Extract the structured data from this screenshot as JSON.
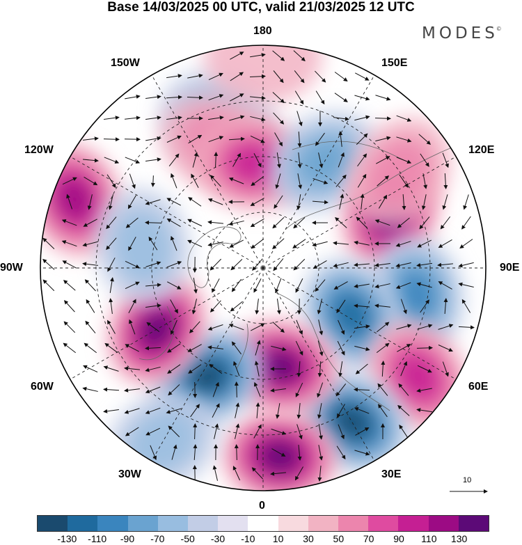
{
  "title": "Base 14/03/2025 00 UTC, valid 21/03/2025 12 UTC",
  "brand": {
    "text": "MODES",
    "mark": "©"
  },
  "longitude_labels": {
    "n180": "180",
    "e150": "150E",
    "e120": "120E",
    "e90": "90E",
    "e60": "60E",
    "e30": "30E",
    "zero": "0",
    "w30": "30W",
    "w60": "60W",
    "w90": "90W",
    "w120": "120W",
    "w150": "150W"
  },
  "reference_vector": {
    "label": "10"
  },
  "colorbar": {
    "colors": [
      "#1a4a6e",
      "#1f6a9e",
      "#3a85be",
      "#6aa3d0",
      "#98bde0",
      "#c2cde6",
      "#e3e0f0",
      "#ffffff",
      "#f8dadf",
      "#f2b3c3",
      "#ec85ad",
      "#df4ba0",
      "#c51f93",
      "#9c0b84",
      "#5c0a77"
    ],
    "tick_labels": [
      "-130",
      "-110",
      "-90",
      "-70",
      "-50",
      "-30",
      "-10",
      "10",
      "30",
      "50",
      "70",
      "90",
      "110",
      "130"
    ]
  },
  "anomaly_centers": [
    {
      "sign": "pos",
      "lon": -110,
      "lat": 0.9,
      "amp": 90
    },
    {
      "sign": "neg",
      "lon": -163,
      "lat": 0.7,
      "amp": 40
    },
    {
      "sign": "pos",
      "lon": 180,
      "lat": 0.95,
      "amp": 20
    },
    {
      "sign": "pos",
      "lon": -160,
      "lat": 0.6,
      "amp": 40
    },
    {
      "sign": "pos",
      "lon": -175,
      "lat": 0.47,
      "amp": 70
    },
    {
      "sign": "neg",
      "lon": 150,
      "lat": 0.55,
      "amp": 60
    },
    {
      "sign": "pos",
      "lon": 113,
      "lat": 0.62,
      "amp": 110
    },
    {
      "sign": "pos",
      "lon": 125,
      "lat": 0.75,
      "amp": 40
    },
    {
      "sign": "neg",
      "lon": 80,
      "lat": 0.7,
      "amp": 70
    },
    {
      "sign": "neg",
      "lon": 62,
      "lat": 0.45,
      "amp": 90
    },
    {
      "sign": "pos",
      "lon": 55,
      "lat": 0.85,
      "amp": 80
    },
    {
      "sign": "neg",
      "lon": 30,
      "lat": 0.8,
      "amp": 120
    },
    {
      "sign": "pos",
      "lon": 5,
      "lat": 0.85,
      "amp": 120
    },
    {
      "sign": "pos",
      "lon": 10,
      "lat": 0.45,
      "amp": 110
    },
    {
      "sign": "neg",
      "lon": -27,
      "lat": 0.55,
      "amp": 110
    },
    {
      "sign": "neg",
      "lon": -30,
      "lat": 0.9,
      "amp": 40
    },
    {
      "sign": "pos",
      "lon": -60,
      "lat": 0.55,
      "amp": 110
    },
    {
      "sign": "neg",
      "lon": -100,
      "lat": 0.55,
      "amp": 40
    }
  ]
}
